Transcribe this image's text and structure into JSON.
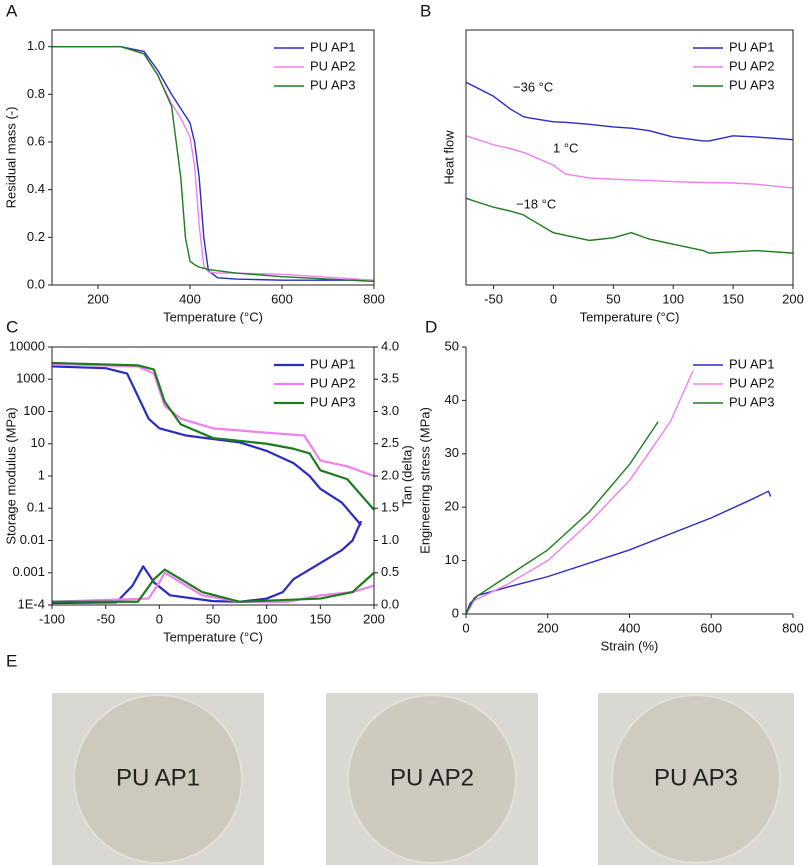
{
  "chart_data": [
    {
      "type": "line",
      "label": "A",
      "xlabel": "Temperature (°C)",
      "ylabel": "Residual mass (-)",
      "xlim": [
        100,
        800
      ],
      "xticks": [
        200,
        400,
        600,
        800
      ],
      "ylim": [
        0,
        1.07
      ],
      "yticks": [
        {
          "value": 0,
          "label": "0.0"
        },
        0.2,
        0.4,
        0.6,
        0.8,
        {
          "value": 1,
          "label": "1.0"
        }
      ],
      "legend": "upper right",
      "x": [
        100,
        250,
        300,
        330,
        360,
        380,
        390,
        400,
        410,
        420,
        430,
        440,
        460,
        500,
        600,
        800
      ],
      "series": [
        {
          "name": "PU AP1",
          "color": "#2b2bc4",
          "values": [
            1.0,
            1.0,
            0.98,
            0.9,
            0.8,
            0.74,
            0.71,
            0.68,
            0.6,
            0.45,
            0.2,
            0.06,
            0.03,
            0.025,
            0.02,
            0.02
          ]
        },
        {
          "name": "PU AP2",
          "color": "#f07ff0",
          "values": [
            1.0,
            1.0,
            0.97,
            0.88,
            0.76,
            0.7,
            0.66,
            0.62,
            0.5,
            0.25,
            0.08,
            0.055,
            0.05,
            0.05,
            0.045,
            0.02
          ]
        },
        {
          "name": "PU AP3",
          "color": "#1e7b1e",
          "values": [
            1.0,
            1.0,
            0.97,
            0.88,
            0.75,
            0.45,
            0.2,
            0.1,
            0.085,
            0.075,
            0.07,
            0.065,
            0.06,
            0.05,
            0.035,
            0.015
          ]
        }
      ]
    },
    {
      "type": "line",
      "label": "B",
      "xlabel": "Temperature (°C)",
      "ylabel": "Heat flow",
      "xlim": [
        -73,
        200
      ],
      "xticks": [
        -50,
        0,
        50,
        100,
        150,
        200
      ],
      "ylim": [
        0,
        10
      ],
      "legend": "upper right",
      "annotations": [
        "−36 °C",
        "1 °C",
        "−18 °C"
      ],
      "x": [
        -73,
        -50,
        -36,
        -25,
        -20,
        0,
        10,
        30,
        50,
        65,
        80,
        100,
        125,
        130,
        150,
        170,
        200
      ],
      "series": [
        {
          "name": "PU AP1",
          "color": "#2b2bc4",
          "values": [
            7.95,
            7.4,
            6.9,
            6.6,
            6.55,
            6.4,
            6.38,
            6.3,
            6.2,
            6.15,
            6.05,
            5.8,
            5.65,
            5.65,
            5.85,
            5.8,
            5.7
          ]
        },
        {
          "name": "PU AP2",
          "color": "#f07ff0",
          "values": [
            5.85,
            5.5,
            5.35,
            5.2,
            5.1,
            4.7,
            4.35,
            4.2,
            4.15,
            4.12,
            4.1,
            4.05,
            4.02,
            4.02,
            4.0,
            3.95,
            3.8
          ]
        },
        {
          "name": "PU AP3",
          "color": "#1e7b1e",
          "values": [
            3.4,
            3.05,
            2.9,
            2.75,
            2.6,
            2.05,
            1.95,
            1.75,
            1.85,
            2.05,
            1.8,
            1.6,
            1.35,
            1.25,
            1.3,
            1.35,
            1.25
          ]
        }
      ]
    },
    {
      "type": "line",
      "label": "C",
      "xlabel": "Temperature (°C)",
      "ylabel": "Storage modulus (MPa)",
      "y2label": "Tan (delta)",
      "xlim": [
        -100,
        200
      ],
      "xticks": [
        -100,
        -50,
        0,
        50,
        100,
        150,
        200
      ],
      "ylog": true,
      "ylim": [
        0.0001,
        10000
      ],
      "yticks": [
        {
          "value": 0.0001,
          "label": "1E-4"
        },
        0.001,
        0.01,
        0.1,
        1,
        10,
        100,
        1000,
        10000
      ],
      "y2lim": [
        0,
        4
      ],
      "y2ticks": [
        {
          "value": 0,
          "label": "0.0"
        },
        0.5,
        {
          "value": 1,
          "label": "1.0"
        },
        1.5,
        {
          "value": 2,
          "label": "2.0"
        },
        2.5,
        {
          "value": 3,
          "label": "3.0"
        },
        3.5,
        {
          "value": 4,
          "label": "4.0"
        }
      ],
      "legend": "upper right",
      "series": [
        {
          "name": "PU AP1",
          "color": "#2b2bc4",
          "x": [
            -100,
            -50,
            -30,
            -20,
            -10,
            0,
            25,
            50,
            75,
            100,
            125,
            140,
            150,
            170,
            188
          ],
          "values": [
            2500,
            2200,
            1500,
            300,
            60,
            30,
            18,
            14,
            11,
            6,
            2.5,
            1,
            0.4,
            0.15,
            0.03
          ]
        },
        {
          "name": "PU AP2",
          "color": "#f07ff0",
          "x": [
            -100,
            -20,
            -5,
            5,
            20,
            50,
            100,
            135,
            150,
            175,
            200
          ],
          "values": [
            3000,
            2500,
            1500,
            150,
            60,
            30,
            22,
            18,
            3,
            2,
            1
          ]
        },
        {
          "name": "PU AP3",
          "color": "#1e7b1e",
          "x": [
            -100,
            -20,
            -5,
            5,
            20,
            50,
            100,
            125,
            140,
            150,
            175,
            200
          ],
          "values": [
            3200,
            2700,
            2000,
            200,
            40,
            15,
            10,
            7,
            5,
            1.5,
            0.8,
            0.09
          ]
        },
        {
          "color": "#2b2bc4",
          "axis": "y2",
          "x": [
            -100,
            -40,
            -25,
            -15,
            -5,
            10,
            50,
            75,
            100,
            115,
            125,
            150,
            170,
            180,
            188
          ],
          "values": [
            0.03,
            0.04,
            0.3,
            0.6,
            0.35,
            0.15,
            0.06,
            0.05,
            0.1,
            0.2,
            0.4,
            0.65,
            0.85,
            1.0,
            1.3
          ]
        },
        {
          "color": "#f07ff0",
          "axis": "y2",
          "x": [
            -100,
            -10,
            0,
            5,
            15,
            40,
            75,
            120,
            150,
            180,
            200
          ],
          "values": [
            0.05,
            0.1,
            0.35,
            0.5,
            0.4,
            0.15,
            0.05,
            0.05,
            0.15,
            0.2,
            0.3
          ]
        },
        {
          "color": "#1e7b1e",
          "axis": "y2",
          "x": [
            -100,
            -20,
            -5,
            5,
            20,
            40,
            75,
            150,
            180,
            200
          ],
          "values": [
            0.05,
            0.05,
            0.4,
            0.55,
            0.4,
            0.2,
            0.05,
            0.1,
            0.2,
            0.5
          ]
        }
      ]
    },
    {
      "type": "line",
      "label": "D",
      "xlabel": "Strain (%)",
      "ylabel": "Engineering stress (MPa)",
      "xlim": [
        0,
        800
      ],
      "xticks": [
        0,
        200,
        400,
        600,
        800
      ],
      "ylim": [
        0,
        50
      ],
      "yticks": [
        0,
        10,
        20,
        30,
        40,
        50
      ],
      "legend": "upper right",
      "series": [
        {
          "name": "PU AP1",
          "color": "#2b2bc4",
          "x": [
            0,
            10,
            30,
            100,
            200,
            400,
            600,
            700,
            740,
            745
          ],
          "values": [
            0,
            2,
            3.5,
            5,
            7,
            12,
            18,
            21.5,
            23,
            22
          ]
        },
        {
          "name": "PU AP2",
          "color": "#f07ff0",
          "x": [
            0,
            20,
            100,
            200,
            300,
            400,
            500,
            555
          ],
          "values": [
            0,
            2.5,
            5.5,
            10,
            17,
            25,
            36,
            45.5
          ]
        },
        {
          "name": "PU AP3",
          "color": "#1e7b1e",
          "x": [
            0,
            20,
            100,
            200,
            300,
            400,
            470
          ],
          "values": [
            0,
            3,
            7,
            12,
            19,
            28,
            36
          ]
        }
      ]
    }
  ],
  "photos": {
    "label": "E",
    "samples": [
      "PU AP1",
      "PU AP2",
      "PU AP3"
    ]
  }
}
